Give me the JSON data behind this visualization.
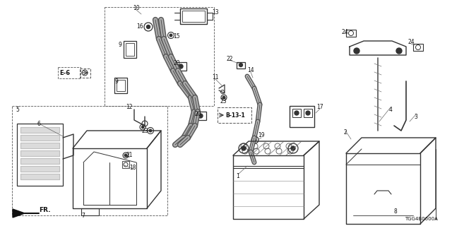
{
  "bg_color": "#ffffff",
  "part_number": "TGG4B0600A",
  "line_color": "#333333",
  "label_color": "#111111",
  "label_fs": 5.5,
  "lw": 0.7
}
